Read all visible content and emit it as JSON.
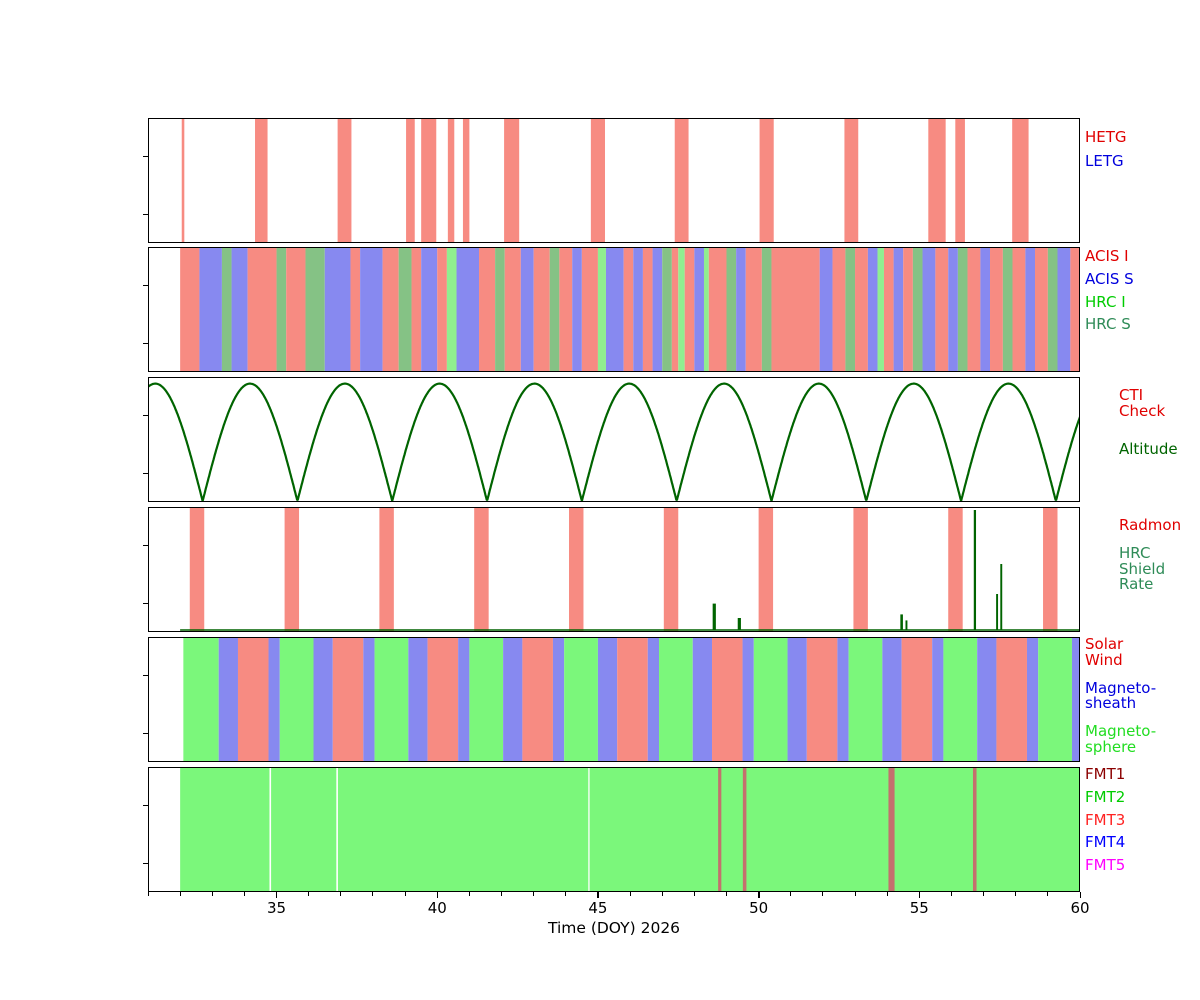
{
  "chart_data": {
    "type": "timeline",
    "title": "",
    "xlabel": "Time (DOY) 2026",
    "x_range": [
      31,
      60
    ],
    "x_ticks": [
      35,
      40,
      45,
      50,
      55,
      60
    ],
    "x_minor_tick_step": 1,
    "grid": false,
    "legend_position": "right",
    "palette": {
      "r": "#f78b82",
      "b": "#8789f0",
      "g": "#90ee90",
      "sg": "#85c285",
      "G": "#7bf77b",
      "w": "#ffffff",
      "dr2": "#c4706e",
      "dg": "#006400"
    },
    "panels": [
      {
        "id": "gratings",
        "legend": [
          {
            "text": "HETG",
            "color": "#e00000"
          },
          {
            "text": "LETG",
            "color": "#0000dd"
          }
        ],
        "legend_offset": 12,
        "legend_gap": 8,
        "legend_indent": 0,
        "bands": [
          [
            32.05,
            32.13,
            "r"
          ],
          [
            34.33,
            34.72,
            "r"
          ],
          [
            36.9,
            37.33,
            "r"
          ],
          [
            39.03,
            39.3,
            "r"
          ],
          [
            39.5,
            39.97,
            "r"
          ],
          [
            40.33,
            40.53,
            "r"
          ],
          [
            40.8,
            41.0,
            "r"
          ],
          [
            42.08,
            42.55,
            "r"
          ],
          [
            44.78,
            45.22,
            "r"
          ],
          [
            47.39,
            47.82,
            "r"
          ],
          [
            50.03,
            50.47,
            "r"
          ],
          [
            52.67,
            53.1,
            "r"
          ],
          [
            55.28,
            55.82,
            "r"
          ],
          [
            56.12,
            56.42,
            "r"
          ],
          [
            57.89,
            58.4,
            "r"
          ]
        ]
      },
      {
        "id": "instruments",
        "legend": [
          {
            "text": "ACIS I",
            "color": "#e00000"
          },
          {
            "text": "ACIS S",
            "color": "#0000dd"
          },
          {
            "text": "HRC I",
            "color": "#00cc00"
          },
          {
            "text": "HRC S",
            "color": "#2e8b57"
          }
        ],
        "legend_offset": 2,
        "legend_gap": 7,
        "legend_indent": 0,
        "bands": [
          [
            32.0,
            32.6,
            "r"
          ],
          [
            32.6,
            33.3,
            "b"
          ],
          [
            33.3,
            33.6,
            "sg"
          ],
          [
            33.6,
            34.1,
            "b"
          ],
          [
            34.1,
            35.0,
            "r"
          ],
          [
            35.0,
            35.3,
            "sg"
          ],
          [
            35.3,
            35.9,
            "r"
          ],
          [
            35.9,
            36.5,
            "sg"
          ],
          [
            36.5,
            37.3,
            "b"
          ],
          [
            37.3,
            37.6,
            "r"
          ],
          [
            37.6,
            38.3,
            "b"
          ],
          [
            38.3,
            38.8,
            "r"
          ],
          [
            38.8,
            39.2,
            "sg"
          ],
          [
            39.2,
            39.5,
            "r"
          ],
          [
            39.5,
            40.0,
            "b"
          ],
          [
            40.0,
            40.3,
            "r"
          ],
          [
            40.3,
            40.6,
            "g"
          ],
          [
            40.6,
            41.3,
            "b"
          ],
          [
            41.3,
            41.8,
            "r"
          ],
          [
            41.8,
            42.1,
            "sg"
          ],
          [
            42.1,
            42.6,
            "r"
          ],
          [
            42.6,
            43.0,
            "b"
          ],
          [
            43.0,
            43.5,
            "r"
          ],
          [
            43.5,
            43.8,
            "sg"
          ],
          [
            43.8,
            44.2,
            "r"
          ],
          [
            44.2,
            44.5,
            "b"
          ],
          [
            44.5,
            45.0,
            "r"
          ],
          [
            45.0,
            45.25,
            "g"
          ],
          [
            45.25,
            45.8,
            "b"
          ],
          [
            45.8,
            46.1,
            "r"
          ],
          [
            46.1,
            46.4,
            "b"
          ],
          [
            46.4,
            46.7,
            "r"
          ],
          [
            46.7,
            47.0,
            "b"
          ],
          [
            47.0,
            47.3,
            "sg"
          ],
          [
            47.3,
            47.5,
            "r"
          ],
          [
            47.5,
            47.7,
            "g"
          ],
          [
            47.7,
            48.0,
            "r"
          ],
          [
            48.0,
            48.3,
            "b"
          ],
          [
            48.3,
            48.45,
            "g"
          ],
          [
            48.45,
            49.0,
            "r"
          ],
          [
            49.0,
            49.3,
            "sg"
          ],
          [
            49.3,
            49.6,
            "b"
          ],
          [
            49.6,
            50.1,
            "r"
          ],
          [
            50.1,
            50.4,
            "sg"
          ],
          [
            50.4,
            51.9,
            "r"
          ],
          [
            51.9,
            52.3,
            "b"
          ],
          [
            52.3,
            52.7,
            "r"
          ],
          [
            52.7,
            53.0,
            "sg"
          ],
          [
            53.0,
            53.4,
            "r"
          ],
          [
            53.4,
            53.7,
            "b"
          ],
          [
            53.7,
            53.9,
            "g"
          ],
          [
            53.9,
            54.2,
            "r"
          ],
          [
            54.2,
            54.5,
            "b"
          ],
          [
            54.5,
            54.8,
            "r"
          ],
          [
            54.8,
            55.1,
            "sg"
          ],
          [
            55.1,
            55.5,
            "b"
          ],
          [
            55.5,
            55.9,
            "r"
          ],
          [
            55.9,
            56.2,
            "b"
          ],
          [
            56.2,
            56.5,
            "sg"
          ],
          [
            56.5,
            56.9,
            "r"
          ],
          [
            56.9,
            57.2,
            "b"
          ],
          [
            57.2,
            57.6,
            "r"
          ],
          [
            57.6,
            57.9,
            "sg"
          ],
          [
            57.9,
            58.3,
            "r"
          ],
          [
            58.3,
            58.6,
            "b"
          ],
          [
            58.6,
            59.0,
            "r"
          ],
          [
            59.0,
            59.3,
            "sg"
          ],
          [
            59.3,
            59.7,
            "b"
          ],
          [
            59.7,
            60.0,
            "r"
          ]
        ]
      },
      {
        "id": "altitude",
        "legend": [
          {
            "text": "CTI\nCheck",
            "color": "#e00000"
          },
          {
            "text": "Altitude",
            "color": "#006400"
          }
        ],
        "legend_offset": 11,
        "legend_gap": 22,
        "legend_indent": 34,
        "curve": {
          "shape": "abs_sin",
          "p0": 32.7,
          "period": 2.95,
          "peak": 0.97,
          "c": "dg",
          "lw": 2.2
        }
      },
      {
        "id": "radmon",
        "legend": [
          {
            "text": "Radmon",
            "color": "#e00000"
          },
          {
            "text": "HRC\nShield\nRate",
            "color": "#2e8b57"
          }
        ],
        "legend_offset": 11,
        "legend_gap": 12,
        "legend_indent": 34,
        "bands": [
          [
            32.3,
            32.75,
            "r"
          ],
          [
            35.25,
            35.7,
            "r"
          ],
          [
            38.2,
            38.65,
            "r"
          ],
          [
            41.15,
            41.6,
            "r"
          ],
          [
            44.1,
            44.55,
            "r"
          ],
          [
            47.05,
            47.5,
            "r"
          ],
          [
            50.0,
            50.45,
            "r"
          ],
          [
            52.95,
            53.4,
            "r"
          ],
          [
            55.9,
            56.35,
            "r"
          ],
          [
            58.85,
            59.3,
            "r"
          ]
        ],
        "spikes": {
          "from": 32.0,
          "c": "dg",
          "items": [
            [
              48.62,
              0.22,
              0.1
            ],
            [
              49.4,
              0.1,
              0.1
            ],
            [
              54.45,
              0.13,
              0.08
            ],
            [
              54.6,
              0.08,
              0.06
            ],
            [
              56.73,
              1.0,
              0.07
            ],
            [
              57.42,
              0.3,
              0.06
            ],
            [
              57.55,
              0.55,
              0.06
            ]
          ]
        }
      },
      {
        "id": "geospace",
        "legend": [
          {
            "text": "Solar\nWind",
            "color": "#e00000"
          },
          {
            "text": "Magneto-\nsheath",
            "color": "#0000dd"
          },
          {
            "text": "Magneto-\nsphere",
            "color": "#22dd22"
          }
        ],
        "legend_offset": 0,
        "legend_gap": 12,
        "legend_indent": 0,
        "bands": [
          [
            32.1,
            33.2,
            "G"
          ],
          [
            33.2,
            33.8,
            "b"
          ],
          [
            33.8,
            34.75,
            "r"
          ],
          [
            34.75,
            35.1,
            "b"
          ],
          [
            35.1,
            36.15,
            "G"
          ],
          [
            36.15,
            36.75,
            "b"
          ],
          [
            36.75,
            37.7,
            "r"
          ],
          [
            37.7,
            38.05,
            "b"
          ],
          [
            38.05,
            39.1,
            "G"
          ],
          [
            39.1,
            39.7,
            "b"
          ],
          [
            39.7,
            40.65,
            "r"
          ],
          [
            40.65,
            41.0,
            "b"
          ],
          [
            41.0,
            42.05,
            "G"
          ],
          [
            42.05,
            42.65,
            "b"
          ],
          [
            42.65,
            43.6,
            "r"
          ],
          [
            43.6,
            43.95,
            "b"
          ],
          [
            43.95,
            45.0,
            "G"
          ],
          [
            45.0,
            45.6,
            "b"
          ],
          [
            45.6,
            46.55,
            "r"
          ],
          [
            46.55,
            46.9,
            "b"
          ],
          [
            46.9,
            47.95,
            "G"
          ],
          [
            47.95,
            48.55,
            "b"
          ],
          [
            48.55,
            49.5,
            "r"
          ],
          [
            49.5,
            49.85,
            "b"
          ],
          [
            49.85,
            50.9,
            "G"
          ],
          [
            50.9,
            51.5,
            "b"
          ],
          [
            51.5,
            52.45,
            "r"
          ],
          [
            52.45,
            52.8,
            "b"
          ],
          [
            52.8,
            53.85,
            "G"
          ],
          [
            53.85,
            54.45,
            "b"
          ],
          [
            54.45,
            55.4,
            "r"
          ],
          [
            55.4,
            55.75,
            "b"
          ],
          [
            55.75,
            56.8,
            "G"
          ],
          [
            56.8,
            57.4,
            "b"
          ],
          [
            57.4,
            58.35,
            "r"
          ],
          [
            58.35,
            58.7,
            "b"
          ],
          [
            58.7,
            59.75,
            "G"
          ],
          [
            59.75,
            60.0,
            "b"
          ]
        ]
      },
      {
        "id": "fmt",
        "legend": [
          {
            "text": "FMT1",
            "color": "#8b0000"
          },
          {
            "text": "FMT2",
            "color": "#00cc00"
          },
          {
            "text": "FMT3",
            "color": "#ff2222"
          },
          {
            "text": "FMT4",
            "color": "#0000ff"
          },
          {
            "text": "FMT5",
            "color": "#ff00ff"
          }
        ],
        "legend_offset": 0,
        "legend_gap": 7,
        "legend_indent": 0,
        "bands": [
          [
            32.0,
            60.0,
            "G"
          ],
          [
            34.78,
            34.83,
            "w"
          ],
          [
            36.86,
            36.91,
            "w"
          ],
          [
            44.7,
            44.74,
            "w"
          ],
          [
            48.74,
            48.84,
            "dr2"
          ],
          [
            49.51,
            49.62,
            "dr2"
          ],
          [
            54.04,
            54.23,
            "dr2"
          ],
          [
            56.67,
            56.78,
            "dr2"
          ]
        ]
      }
    ]
  }
}
